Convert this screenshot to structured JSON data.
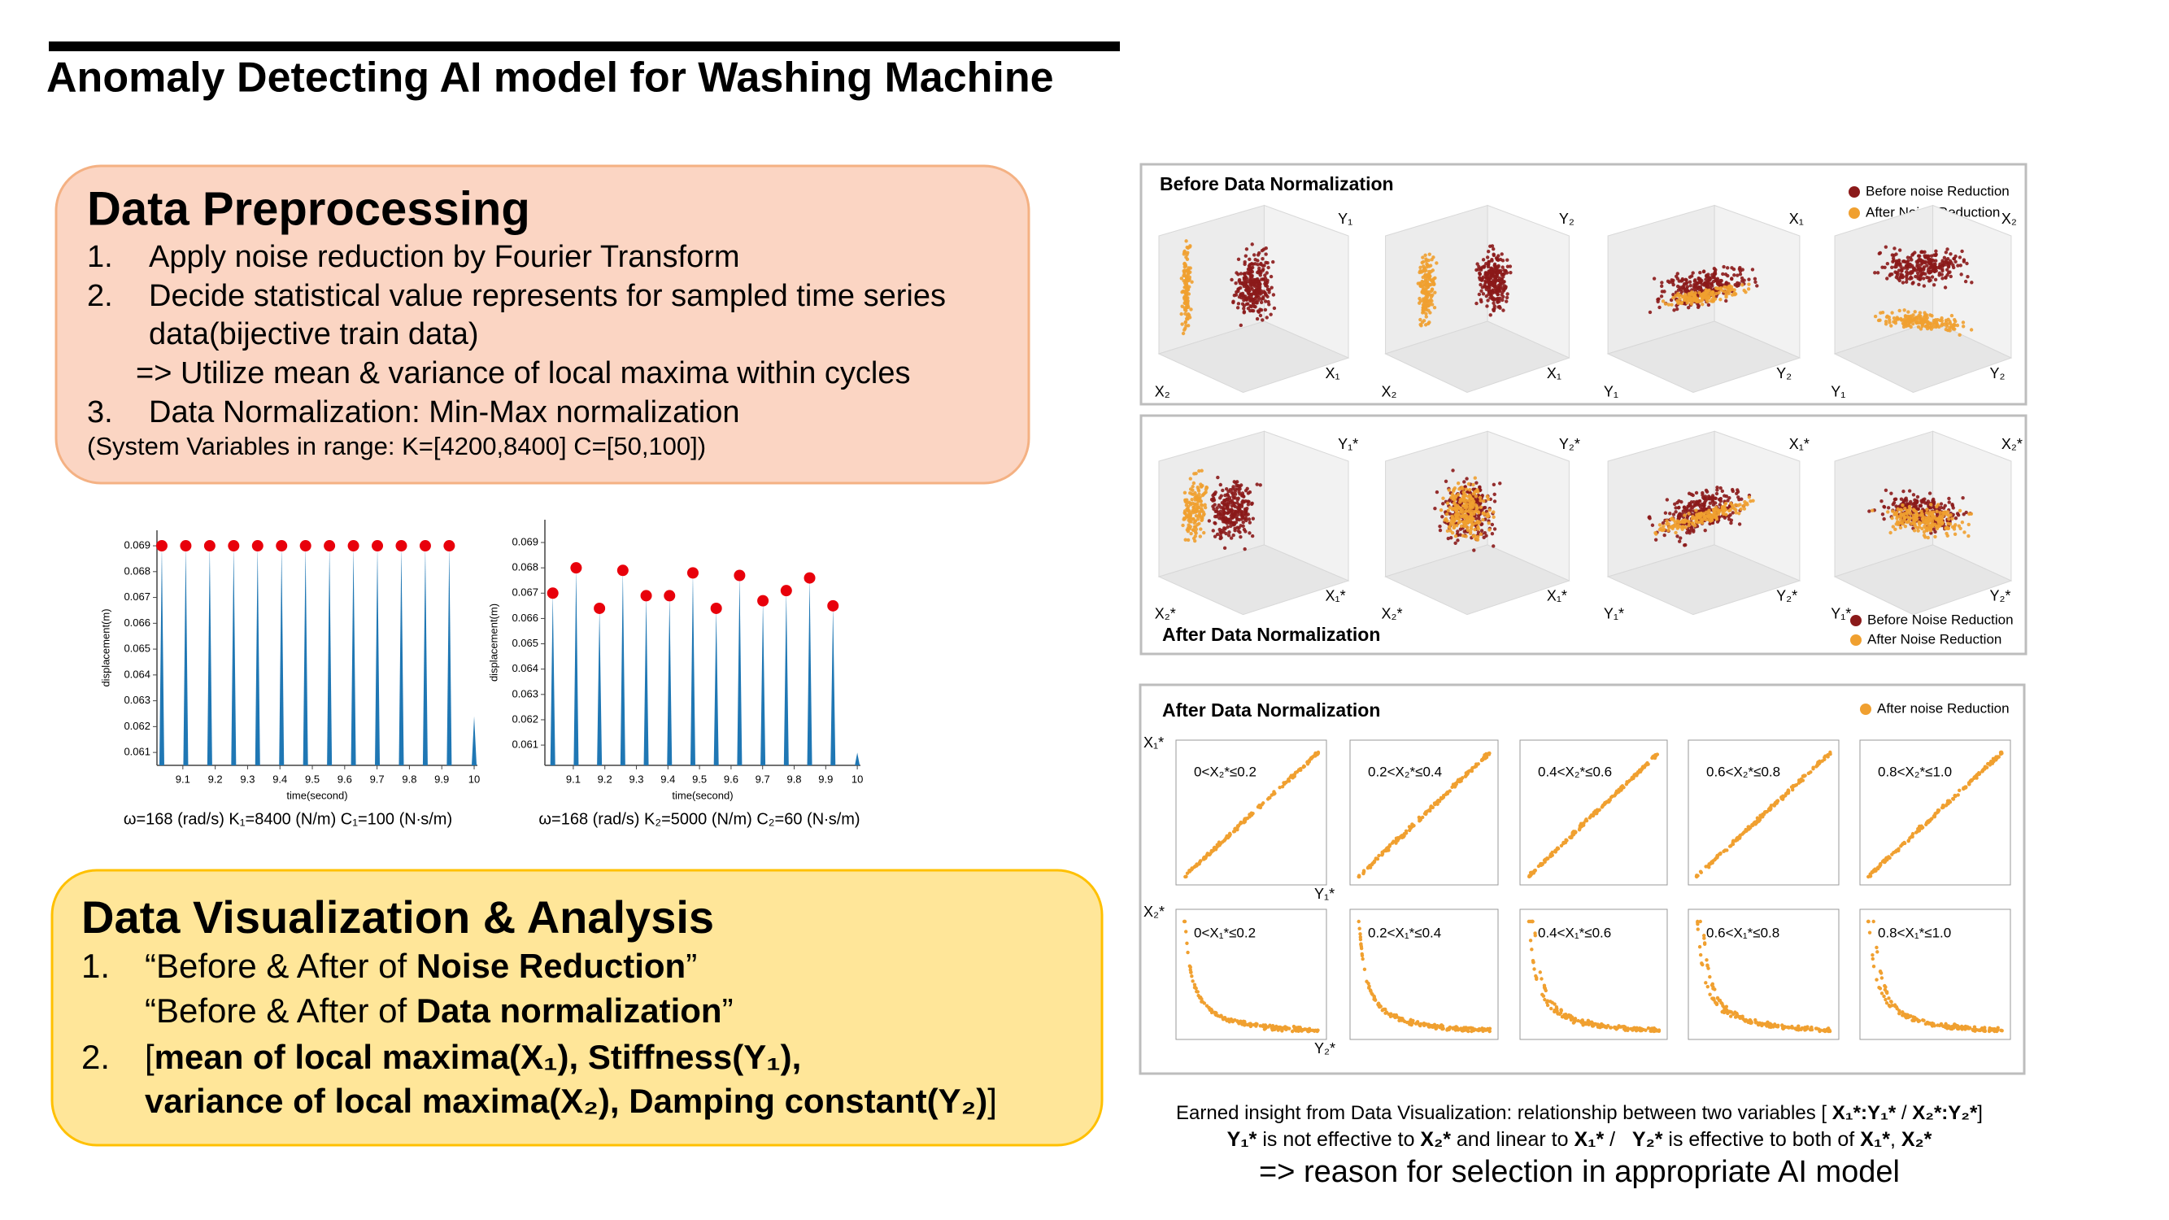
{
  "header": {
    "title": "Anomaly Detecting AI model for Washing Machine"
  },
  "preprocessing": {
    "title": "Data Preprocessing",
    "lines": [
      {
        "num": "1.",
        "text": "Apply noise reduction by Fourier Transform"
      },
      {
        "num": "2.",
        "text": "Decide statistical value represents for sampled time series"
      },
      {
        "text": "data(bijective train data)"
      },
      {
        "text": "=> Utilize mean & variance of local maxima within cycles"
      },
      {
        "num": "3.",
        "text": "Data Normalization: Min-Max normalization"
      },
      {
        "text": "(System Variables in range: K=[4200,8400] C=[50,100])"
      }
    ]
  },
  "chart_data": [
    {
      "type": "stem",
      "xlabel": "time(second)",
      "ylabel": "displacement(m)",
      "caption": "ω=168 (rad/s) K₁=8400 (N/m) C₁=100 (N∙s/m)",
      "xlim": [
        9.02,
        10.01
      ],
      "ylim": [
        0.0605,
        0.0696
      ],
      "xticks": [
        9.1,
        9.2,
        9.3,
        9.4,
        9.5,
        9.6,
        9.7,
        9.8,
        9.9,
        10
      ],
      "yticks": [
        0.061,
        0.062,
        0.063,
        0.064,
        0.065,
        0.066,
        0.067,
        0.068,
        0.069
      ],
      "color": "#1f77b4",
      "x": [
        9.035,
        9.109,
        9.183,
        9.257,
        9.331,
        9.405,
        9.479,
        9.553,
        9.627,
        9.701,
        9.775,
        9.849,
        9.923,
        10.0
      ],
      "values": [
        0.069,
        0.069,
        0.069,
        0.069,
        0.069,
        0.069,
        0.069,
        0.069,
        0.069,
        0.069,
        0.069,
        0.069,
        0.069,
        0.0624
      ],
      "markers": {
        "color": "#e8000b",
        "x": [
          9.035,
          9.109,
          9.183,
          9.257,
          9.331,
          9.405,
          9.479,
          9.553,
          9.627,
          9.701,
          9.775,
          9.849,
          9.923
        ],
        "values": [
          0.069,
          0.069,
          0.069,
          0.069,
          0.069,
          0.069,
          0.069,
          0.069,
          0.069,
          0.069,
          0.069,
          0.069,
          0.069
        ]
      }
    },
    {
      "type": "stem",
      "xlabel": "time(second)",
      "ylabel": "displacement(m)",
      "caption": "ω=168 (rad/s) K₂=5000 (N/m) C₂=60 (N∙s/m)",
      "xlim": [
        9.01,
        10.01
      ],
      "ylim": [
        0.0602,
        0.0699
      ],
      "xticks": [
        9.1,
        9.2,
        9.3,
        9.4,
        9.5,
        9.6,
        9.7,
        9.8,
        9.9,
        10
      ],
      "yticks": [
        0.061,
        0.062,
        0.063,
        0.064,
        0.065,
        0.066,
        0.067,
        0.068,
        0.069
      ],
      "color": "#1f77b4",
      "x": [
        9.035,
        9.109,
        9.183,
        9.257,
        9.331,
        9.405,
        9.479,
        9.553,
        9.627,
        9.701,
        9.775,
        9.849,
        9.923,
        10.0
      ],
      "values": [
        0.067,
        0.068,
        0.0664,
        0.0679,
        0.0669,
        0.0669,
        0.0678,
        0.0664,
        0.0677,
        0.0667,
        0.0671,
        0.0676,
        0.0665,
        0.0607
      ],
      "markers": {
        "color": "#e8000b",
        "x": [
          9.035,
          9.109,
          9.183,
          9.257,
          9.331,
          9.405,
          9.479,
          9.553,
          9.627,
          9.701,
          9.775,
          9.849,
          9.923
        ],
        "values": [
          0.067,
          0.068,
          0.0664,
          0.0679,
          0.0669,
          0.0669,
          0.0678,
          0.0664,
          0.0677,
          0.0667,
          0.0671,
          0.0676,
          0.0665
        ]
      }
    }
  ],
  "analysis": {
    "title": "Data Visualization & Analysis",
    "lines": [
      {
        "num": "1.",
        "segments": [
          {
            "text": "“Before & After of ",
            "bold": false
          },
          {
            "text": "Noise Reduction",
            "bold": true
          },
          {
            "text": "”",
            "bold": false
          }
        ]
      },
      {
        "segments": [
          {
            "text": "“Before & After of ",
            "bold": false
          },
          {
            "text": "Data normalization",
            "bold": true
          },
          {
            "text": "”",
            "bold": false
          }
        ]
      },
      {
        "num": "2.",
        "segments": [
          {
            "text": "[",
            "bold": false
          },
          {
            "text": "mean of local maxima(X₁), Stiffness(Y₁),",
            "bold": true
          }
        ]
      },
      {
        "segments": [
          {
            "text": "variance of local maxima(X₂), Damping constant(Y₂)",
            "bold": true
          },
          {
            "text": "]",
            "bold": false
          }
        ]
      }
    ]
  },
  "panels": [
    {
      "title": "Before Data Normalization",
      "legend": [
        {
          "name": "Before noise Reduction",
          "color": "#8b1a1a"
        },
        {
          "name": "After Noise Reduction",
          "color": "#f0a030"
        }
      ],
      "plots": [
        {
          "z": "Y₁",
          "x": "X₂",
          "y": "X₁"
        },
        {
          "z": "Y₂",
          "x": "X₂",
          "y": "X₁"
        },
        {
          "z": "X₁",
          "x": "Y₁",
          "y": "Y₂"
        },
        {
          "z": "X₂",
          "x": "Y₁",
          "y": "Y₂"
        }
      ]
    },
    {
      "title": "After Data Normalization",
      "legend": [
        {
          "name": "Before Noise Reduction",
          "color": "#8b1a1a"
        },
        {
          "name": "After Noise Reduction",
          "color": "#f0a030"
        }
      ],
      "plots": [
        {
          "z": "Y₁*",
          "x": "X₂*",
          "y": "X₁*"
        },
        {
          "z": "Y₂*",
          "x": "X₂*",
          "y": "X₁*"
        },
        {
          "z": "X₁*",
          "x": "Y₁*",
          "y": "Y₂*"
        },
        {
          "z": "X₂*",
          "x": "Y₁*",
          "y": "Y₂*"
        }
      ]
    },
    {
      "title": "After Data Normalization",
      "legend": [
        {
          "name": "After noise Reduction",
          "color": "#f0a030"
        }
      ],
      "rows": [
        {
          "x_label": "X₁*",
          "y_label": "Y₁*",
          "intervals": [
            "0<X₂*≤0.2",
            "0.2<X₂*≤0.4",
            "0.4<X₂*≤0.6",
            "0.6<X₂*≤0.8",
            "0.8<X₂*≤1.0"
          ]
        },
        {
          "x_label": "X₂*",
          "y_label": "Y₂*",
          "intervals": [
            "0<X₁*≤0.2",
            "0.2<X₁*≤0.4",
            "0.4<X₁*≤0.6",
            "0.6<X₁*≤0.8",
            "0.8<X₁*≤1.0"
          ]
        }
      ]
    }
  ],
  "insight": {
    "lines": [
      [
        {
          "text": "Earned insight from Data Visualization: relationship between two variables [ ",
          "bold": false
        },
        {
          "text": "X₁*:Y₁*",
          "bold": true
        },
        {
          "text": " / ",
          "bold": false
        },
        {
          "text": "X₂*:Y₂*",
          "bold": true
        },
        {
          "text": "]",
          "bold": false
        }
      ],
      [
        {
          "text": "Y₁*",
          "bold": true
        },
        {
          "text": " is not effective to ",
          "bold": false
        },
        {
          "text": "X₂*",
          "bold": true
        },
        {
          "text": " and linear to ",
          "bold": false
        },
        {
          "text": "X₁*",
          "bold": true
        },
        {
          "text": " /   ",
          "bold": false
        },
        {
          "text": "Y₂*",
          "bold": true
        },
        {
          "text": " is effective to both of ",
          "bold": false
        },
        {
          "text": "X₁*",
          "bold": true
        },
        {
          "text": ", ",
          "bold": false
        },
        {
          "text": "X₂*",
          "bold": true
        }
      ],
      [
        {
          "text": "=> reason for selection in appropriate AI model",
          "bold": false
        }
      ]
    ]
  }
}
